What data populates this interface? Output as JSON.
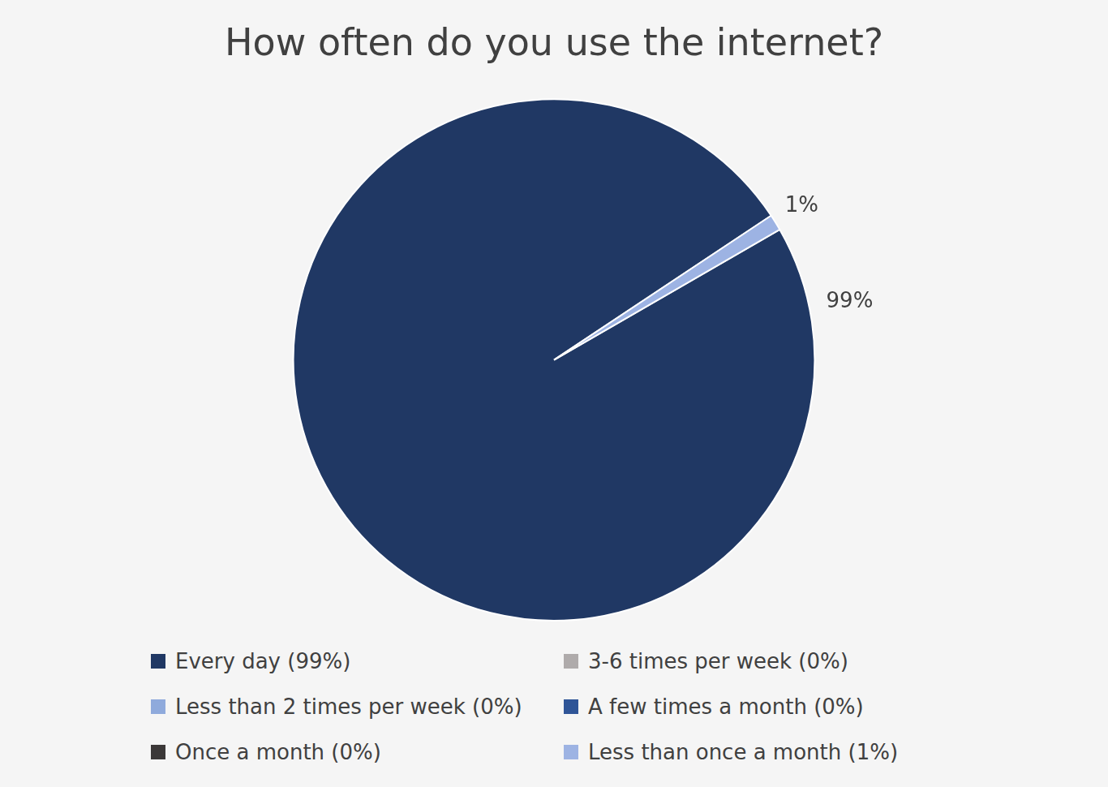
{
  "chart_data": {
    "type": "pie",
    "title": "How often do you use the internet?",
    "categories": [
      "Every day (99%)",
      "3-6 times per week (0%)",
      "Less than 2 times per week (0%)",
      "A few times a month (0%)",
      "Once a month (0%)",
      "Less than once a month (1%)"
    ],
    "values": [
      99,
      0,
      0,
      0,
      0,
      1
    ],
    "value_labels": [
      "99%",
      null,
      null,
      null,
      null,
      "1%"
    ],
    "colors": [
      "#203864",
      "#afabab",
      "#8faadc",
      "#2f5597",
      "#3b3838",
      "#9db3e3"
    ],
    "legend": "bottom",
    "data_labels": true
  }
}
